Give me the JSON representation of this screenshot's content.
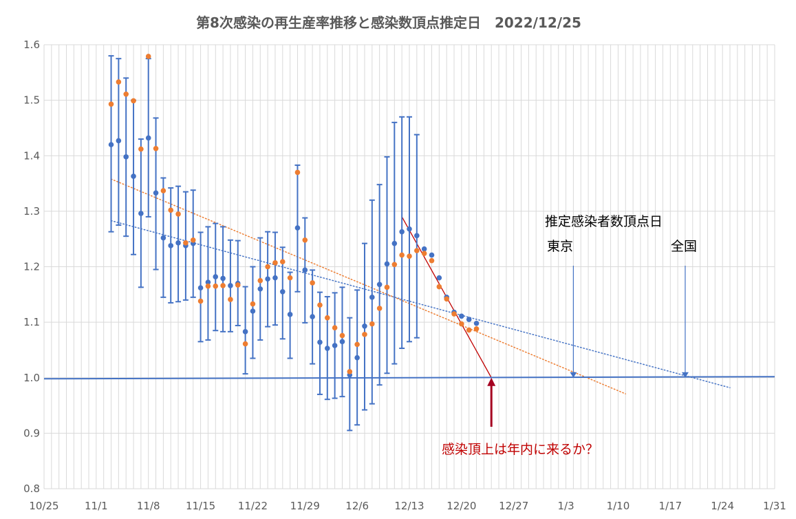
{
  "chart_data": {
    "type": "scatter",
    "title": "第8次感染の再生産率推移と感染数頂点推定日　2022/12/25",
    "xlabel": "",
    "ylabel": "",
    "ylim": [
      0.8,
      1.6
    ],
    "yticks": [
      "0.8",
      "0.9",
      "1.0",
      "1.1",
      "1.2",
      "1.3",
      "1.4",
      "1.5",
      "1.6"
    ],
    "yticks_values": [
      0.8,
      0.9,
      1.0,
      1.1,
      1.2,
      1.3,
      1.4,
      1.5,
      1.6
    ],
    "xlim": [
      "2022-10-25",
      "2023-01-31"
    ],
    "xticks": [
      "10/25",
      "11/1",
      "11/8",
      "11/15",
      "11/22",
      "11/29",
      "12/6",
      "12/13",
      "12/20",
      "12/27",
      "1/3",
      "1/10",
      "1/17",
      "1/24",
      "1/31"
    ],
    "xticks_dates": [
      "2022-10-25",
      "2022-11-01",
      "2022-11-08",
      "2022-11-15",
      "2022-11-22",
      "2022-11-29",
      "2022-12-06",
      "2022-12-13",
      "2022-12-20",
      "2022-12-27",
      "2023-01-03",
      "2023-01-10",
      "2023-01-17",
      "2023-01-24",
      "2023-01-31"
    ],
    "grid": true,
    "colors": {
      "blue": "#4472c4",
      "orange": "#ed7d31",
      "red": "#c00000",
      "dark_red": "#a50021",
      "grid": "#d9d9d9",
      "text": "#595959"
    },
    "series": [
      {
        "points": [
          [
            "2022-11-03",
            1.42
          ],
          [
            "2022-11-04",
            1.427
          ],
          [
            "2022-11-05",
            1.398
          ],
          [
            "2022-11-06",
            1.363
          ],
          [
            "2022-11-07",
            1.296
          ],
          [
            "2022-11-08",
            1.432
          ],
          [
            "2022-11-09",
            1.333
          ],
          [
            "2022-11-10",
            1.252
          ],
          [
            "2022-11-11",
            1.238
          ],
          [
            "2022-11-12",
            1.243
          ],
          [
            "2022-11-13",
            1.238
          ],
          [
            "2022-11-14",
            1.242
          ],
          [
            "2022-11-15",
            1.162
          ],
          [
            "2022-11-16",
            1.172
          ],
          [
            "2022-11-17",
            1.182
          ],
          [
            "2022-11-18",
            1.179
          ],
          [
            "2022-11-19",
            1.166
          ],
          [
            "2022-11-20",
            1.17
          ],
          [
            "2022-11-21",
            1.083
          ],
          [
            "2022-11-22",
            1.12
          ],
          [
            "2022-11-23",
            1.16
          ],
          [
            "2022-11-24",
            1.178
          ],
          [
            "2022-11-25",
            1.18
          ],
          [
            "2022-11-26",
            1.155
          ],
          [
            "2022-11-27",
            1.114
          ],
          [
            "2022-11-28",
            1.27
          ],
          [
            "2022-11-29",
            1.194
          ],
          [
            "2022-11-30",
            1.11
          ],
          [
            "2022-12-01",
            1.064
          ],
          [
            "2022-12-02",
            1.053
          ],
          [
            "2022-12-03",
            1.058
          ],
          [
            "2022-12-04",
            1.065
          ],
          [
            "2022-12-05",
            1.005
          ],
          [
            "2022-12-06",
            1.036
          ],
          [
            "2022-12-07",
            1.093
          ],
          [
            "2022-12-08",
            1.145
          ],
          [
            "2022-12-09",
            1.168
          ],
          [
            "2022-12-10",
            1.205
          ],
          [
            "2022-12-11",
            1.242
          ],
          [
            "2022-12-12",
            1.263
          ],
          [
            "2022-12-13",
            1.268
          ],
          [
            "2022-12-14",
            1.256
          ],
          [
            "2022-12-15",
            1.232
          ],
          [
            "2022-12-16",
            1.221
          ],
          [
            "2022-12-17",
            1.18
          ],
          [
            "2022-12-18",
            1.145
          ],
          [
            "2022-12-19",
            1.118
          ],
          [
            "2022-12-20",
            1.111
          ],
          [
            "2022-12-21",
            1.105
          ],
          [
            "2022-12-22",
            1.098
          ]
        ],
        "error_bars": [
          [
            1.263,
            1.58
          ],
          [
            1.275,
            1.575
          ],
          [
            1.255,
            1.54
          ],
          [
            1.222,
            1.5
          ],
          [
            1.163,
            1.43
          ],
          [
            1.29,
            1.575
          ],
          [
            1.195,
            1.468
          ],
          [
            1.145,
            1.36
          ],
          [
            1.135,
            1.342
          ],
          [
            1.137,
            1.345
          ],
          [
            1.14,
            1.335
          ],
          [
            1.145,
            1.338
          ],
          [
            1.065,
            1.262
          ],
          [
            1.068,
            1.272
          ],
          [
            1.085,
            1.278
          ],
          [
            1.083,
            1.272
          ],
          [
            1.083,
            1.248
          ],
          [
            1.094,
            1.247
          ],
          [
            1.007,
            1.164
          ],
          [
            1.035,
            1.2
          ],
          [
            1.068,
            1.252
          ],
          [
            1.092,
            1.263
          ],
          [
            1.095,
            1.262
          ],
          [
            1.07,
            1.235
          ],
          [
            1.035,
            1.19
          ],
          [
            1.155,
            1.383
          ],
          [
            1.099,
            1.288
          ],
          [
            1.025,
            1.194
          ],
          [
            0.97,
            1.154
          ],
          [
            0.961,
            1.146
          ],
          [
            0.963,
            1.153
          ],
          [
            0.966,
            1.163
          ],
          [
            0.905,
            1.108
          ],
          [
            0.915,
            1.158
          ],
          [
            0.942,
            1.242
          ],
          [
            0.953,
            1.32
          ],
          [
            0.987,
            1.348
          ],
          [
            1.008,
            1.398
          ],
          [
            1.025,
            1.46
          ],
          [
            1.053,
            1.47
          ],
          [
            1.065,
            1.47
          ],
          [
            1.072,
            1.438
          ]
        ]
      },
      {
        "points": [
          [
            "2022-11-03",
            1.493
          ],
          [
            "2022-11-04",
            1.533
          ],
          [
            "2022-11-05",
            1.511
          ],
          [
            "2022-11-06",
            1.499
          ],
          [
            "2022-11-07",
            1.412
          ],
          [
            "2022-11-08",
            1.579
          ],
          [
            "2022-11-09",
            1.413
          ],
          [
            "2022-11-10",
            1.337
          ],
          [
            "2022-11-11",
            1.302
          ],
          [
            "2022-11-12",
            1.295
          ],
          [
            "2022-11-13",
            1.243
          ],
          [
            "2022-11-14",
            1.248
          ],
          [
            "2022-11-15",
            1.138
          ],
          [
            "2022-11-16",
            1.165
          ],
          [
            "2022-11-17",
            1.165
          ],
          [
            "2022-11-18",
            1.166
          ],
          [
            "2022-11-19",
            1.141
          ],
          [
            "2022-11-20",
            1.167
          ],
          [
            "2022-11-21",
            1.061
          ],
          [
            "2022-11-22",
            1.133
          ],
          [
            "2022-11-23",
            1.175
          ],
          [
            "2022-11-24",
            1.2
          ],
          [
            "2022-11-25",
            1.207
          ],
          [
            "2022-11-26",
            1.209
          ],
          [
            "2022-11-27",
            1.18
          ],
          [
            "2022-11-28",
            1.37
          ],
          [
            "2022-11-29",
            1.248
          ],
          [
            "2022-11-30",
            1.171
          ],
          [
            "2022-12-01",
            1.131
          ],
          [
            "2022-12-02",
            1.108
          ],
          [
            "2022-12-03",
            1.09
          ],
          [
            "2022-12-04",
            1.076
          ],
          [
            "2022-12-05",
            1.011
          ],
          [
            "2022-12-06",
            1.06
          ],
          [
            "2022-12-07",
            1.078
          ],
          [
            "2022-12-08",
            1.097
          ],
          [
            "2022-12-09",
            1.125
          ],
          [
            "2022-12-10",
            1.163
          ],
          [
            "2022-12-11",
            1.204
          ],
          [
            "2022-12-12",
            1.221
          ],
          [
            "2022-12-13",
            1.219
          ],
          [
            "2022-12-14",
            1.229
          ],
          [
            "2022-12-15",
            1.224
          ],
          [
            "2022-12-16",
            1.211
          ],
          [
            "2022-12-17",
            1.164
          ],
          [
            "2022-12-18",
            1.142
          ],
          [
            "2022-12-19",
            1.115
          ],
          [
            "2022-12-20",
            1.097
          ],
          [
            "2022-12-21",
            1.086
          ],
          [
            "2022-12-22",
            1.088
          ]
        ]
      }
    ],
    "trendlines": [
      {
        "style": "dotted",
        "color": "blue",
        "start": [
          "2022-11-03",
          1.283
        ],
        "end": [
          "2023-01-25",
          0.982
        ]
      },
      {
        "style": "dotted",
        "color": "orange",
        "start": [
          "2022-11-03",
          1.358
        ],
        "end": [
          "2023-01-11",
          0.971
        ]
      },
      {
        "style": "solid",
        "color": "red",
        "start": [
          "2022-12-12",
          1.29
        ],
        "end": [
          "2022-12-24",
          1.0
        ]
      }
    ],
    "baseline": {
      "value": 1.0,
      "start": "2022-10-25",
      "end": "2023-01-31"
    },
    "annotations": {
      "heading": "推定感染者数頂点日",
      "tokyo": {
        "label": "東京",
        "date": "2023-01-04",
        "value": 1.0
      },
      "national": {
        "label": "全国",
        "date": "2023-01-19",
        "value": 1.0
      },
      "question": {
        "label": "感染頂上は年内に来るか？",
        "date": "2022-12-24",
        "value": 1.0
      }
    }
  }
}
